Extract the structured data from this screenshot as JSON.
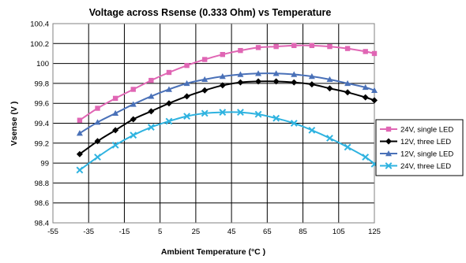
{
  "chart_data": {
    "type": "line",
    "title": "Voltage across Rsense (0.333 Ohm) vs Temperature",
    "xlabel": "Ambient Temperature (°C )",
    "ylabel": "Vsense (V )",
    "xlim": [
      -55,
      125
    ],
    "ylim": [
      98.4,
      100.4
    ],
    "xticks": [
      -55,
      -35,
      -15,
      5,
      25,
      45,
      65,
      85,
      105,
      125
    ],
    "xtick_labels": [
      "-55",
      "-35",
      "-15",
      "5",
      "25",
      "45",
      "65",
      "85",
      "105",
      "125"
    ],
    "yticks": [
      98.4,
      98.6,
      98.8,
      99,
      99.2,
      99.4,
      99.6,
      99.8,
      100,
      100.2,
      100.4
    ],
    "ytick_labels": [
      "98.4",
      "98.6",
      "98.8",
      "99",
      "99.2",
      "99.4",
      "99.6",
      "99.8",
      "100",
      "100.2",
      "100.4"
    ],
    "grid": true,
    "legend_position": "right",
    "series": [
      {
        "name": "24V, single LED",
        "color": "#e066b4",
        "marker": "square",
        "x": [
          -40,
          -30,
          -20,
          -10,
          0,
          10,
          20,
          30,
          40,
          50,
          60,
          70,
          80,
          90,
          100,
          110,
          120,
          125
        ],
        "y": [
          99.43,
          99.55,
          99.65,
          99.74,
          99.83,
          99.91,
          99.98,
          100.04,
          100.09,
          100.13,
          100.16,
          100.17,
          100.18,
          100.18,
          100.17,
          100.15,
          100.12,
          100.1
        ]
      },
      {
        "name": "12V, three LED",
        "color": "#000000",
        "marker": "diamond",
        "x": [
          -40,
          -30,
          -20,
          -10,
          0,
          10,
          20,
          30,
          40,
          50,
          60,
          70,
          80,
          90,
          100,
          110,
          120,
          125
        ],
        "y": [
          99.09,
          99.22,
          99.33,
          99.44,
          99.52,
          99.6,
          99.67,
          99.73,
          99.78,
          99.81,
          99.82,
          99.82,
          99.81,
          99.79,
          99.75,
          99.71,
          99.66,
          99.63
        ]
      },
      {
        "name": "12V, single LED",
        "color": "#4a71b8",
        "marker": "triangle",
        "x": [
          -40,
          -30,
          -20,
          -10,
          0,
          10,
          20,
          30,
          40,
          50,
          60,
          70,
          80,
          90,
          100,
          110,
          120,
          125
        ],
        "y": [
          99.3,
          99.41,
          99.5,
          99.59,
          99.67,
          99.74,
          99.8,
          99.84,
          99.87,
          99.89,
          99.9,
          99.9,
          99.89,
          99.87,
          99.84,
          99.8,
          99.76,
          99.73
        ]
      },
      {
        "name": "24V, three LED",
        "color": "#2fb3e0",
        "marker": "x",
        "x": [
          -40,
          -30,
          -20,
          -10,
          0,
          10,
          20,
          30,
          40,
          50,
          60,
          70,
          80,
          90,
          100,
          110,
          120,
          125
        ],
        "y": [
          98.93,
          99.06,
          99.18,
          99.28,
          99.36,
          99.42,
          99.47,
          99.5,
          99.51,
          99.51,
          99.49,
          99.45,
          99.4,
          99.33,
          99.25,
          99.16,
          99.06,
          98.99
        ]
      }
    ]
  }
}
